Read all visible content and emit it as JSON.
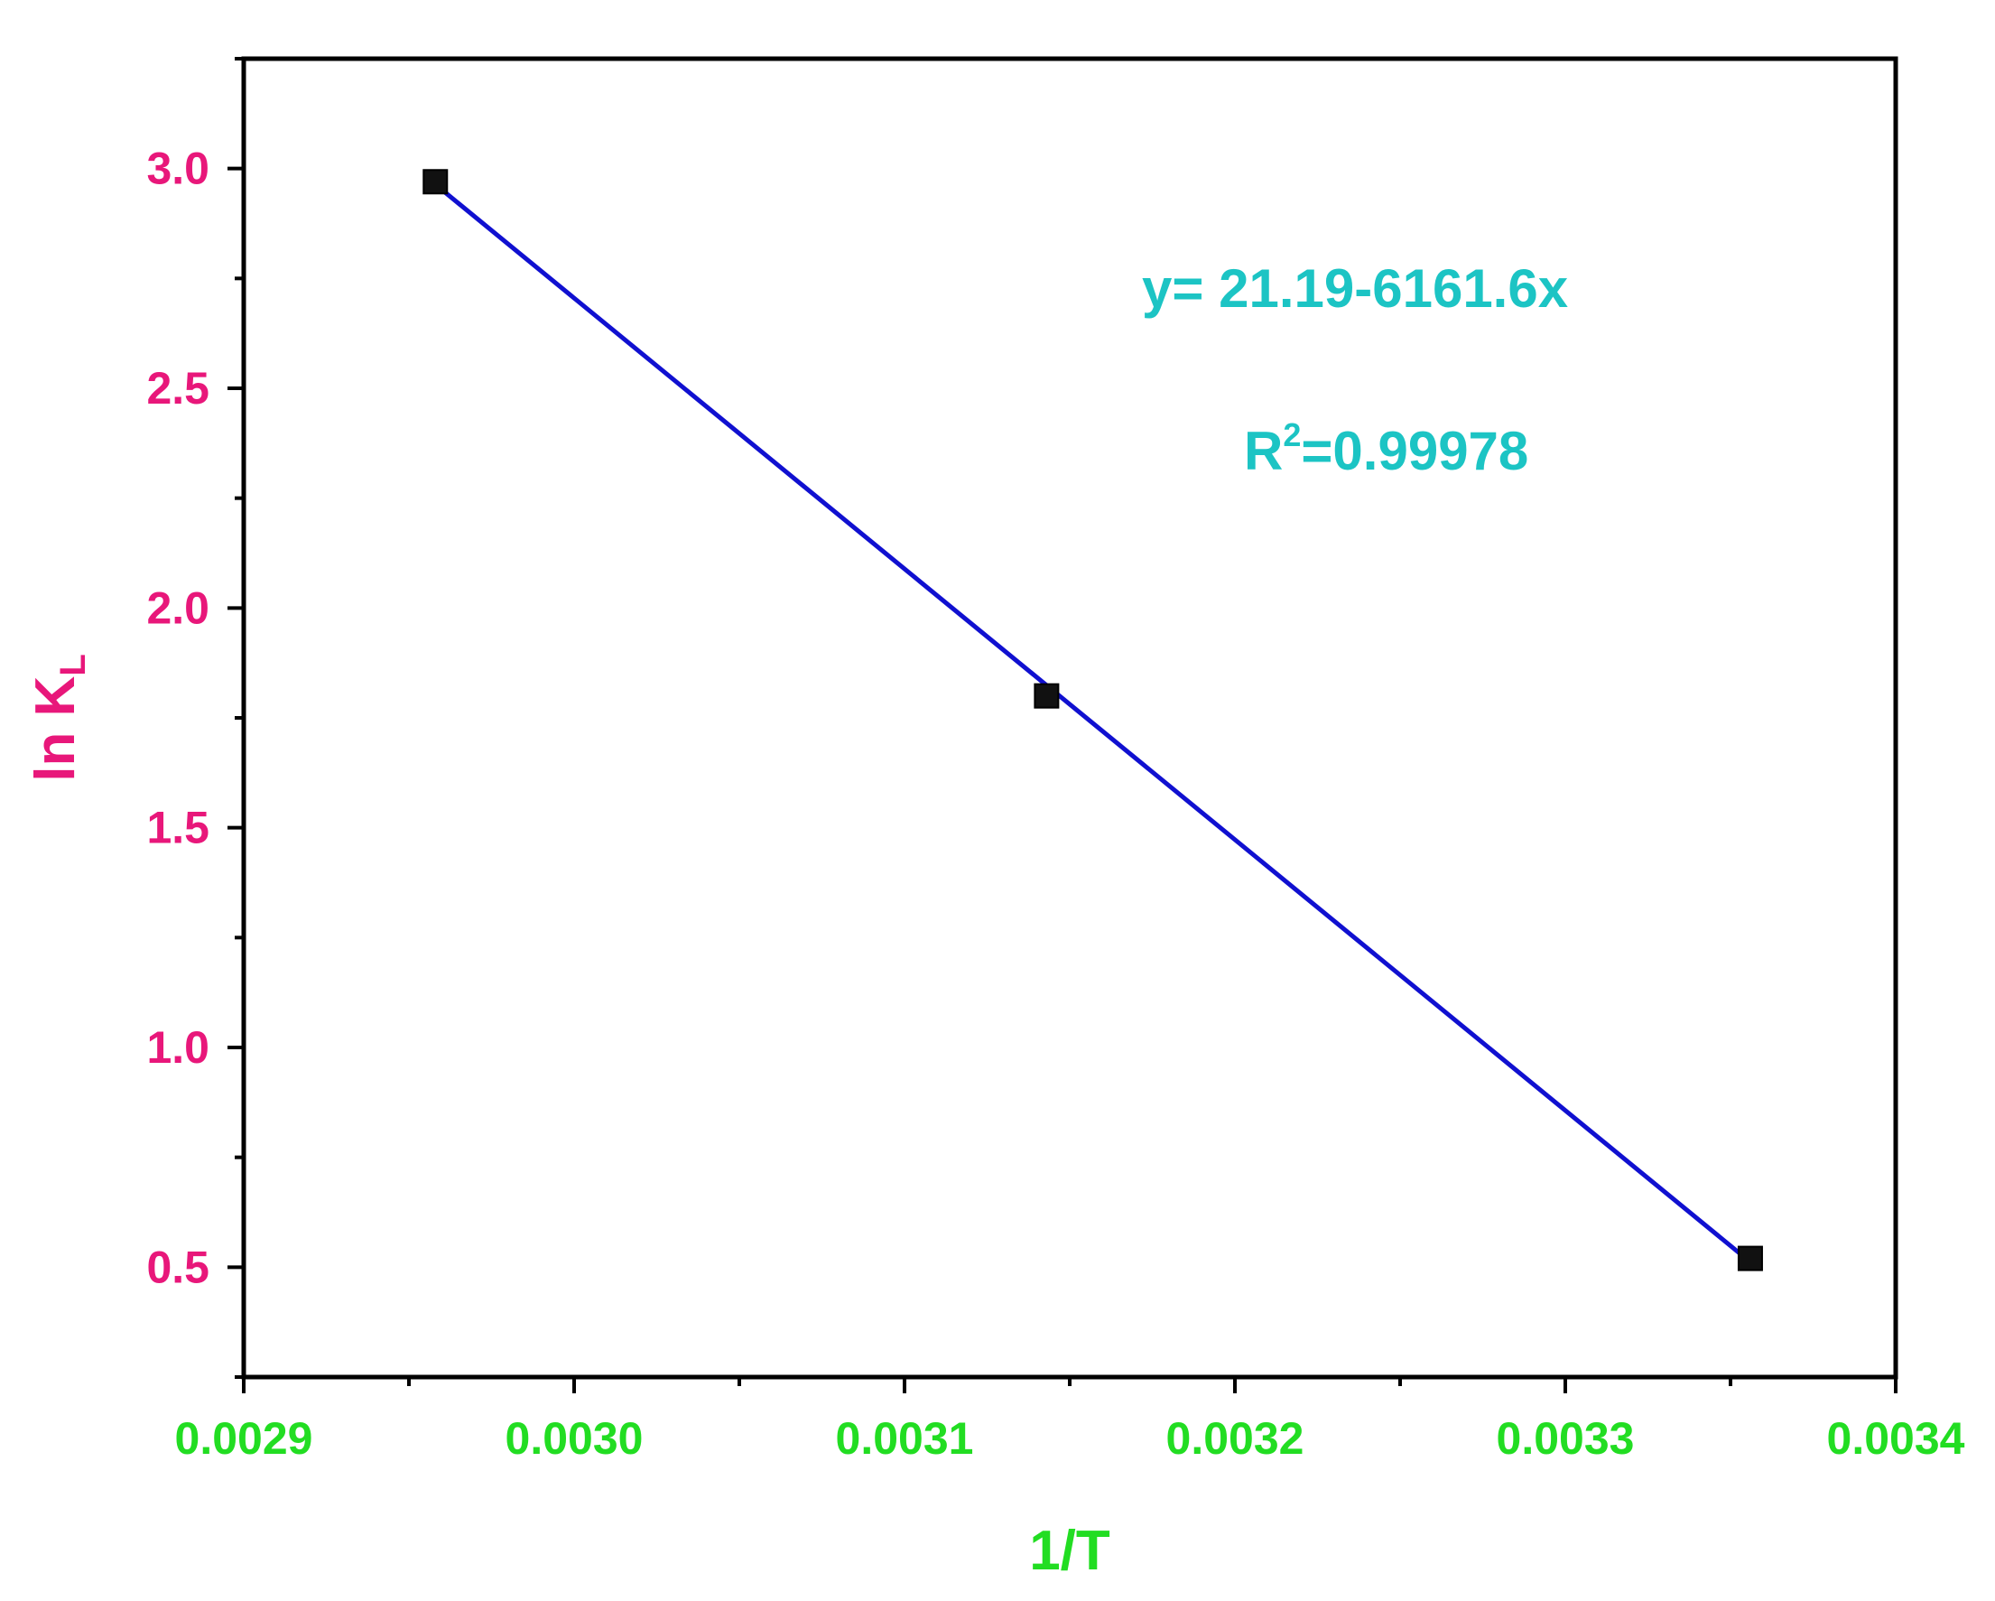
{
  "chart_data": {
    "type": "scatter",
    "x": [
      0.002958,
      0.003143,
      0.003356
    ],
    "y": [
      2.97,
      1.8,
      0.52
    ],
    "xlabel": "1/T",
    "ylabel": {
      "main": "ln K",
      "subscript": "L"
    },
    "xlim": [
      0.0029,
      0.0034
    ],
    "ylim": [
      0.25,
      3.25
    ],
    "xticks": [
      0.0029,
      0.003,
      0.0031,
      0.0032,
      0.0033,
      0.0034
    ],
    "xtick_labels": [
      "0.0029",
      "0.0030",
      "0.0031",
      "0.0032",
      "0.0033",
      "0.0034"
    ],
    "yticks": [
      0.5,
      1.0,
      1.5,
      2.0,
      2.5,
      3.0
    ],
    "ytick_labels": [
      "0.5",
      "1.0",
      "1.5",
      "2.0",
      "2.5",
      "3.0"
    ],
    "fit": {
      "intercept": 21.19,
      "slope": -6161.6,
      "x_range": [
        0.002958,
        0.003356
      ]
    },
    "annotations": {
      "equation": "y= 21.19-6161.6x",
      "r2_prefix": "R",
      "r2_sup": "2",
      "r2_value": "=0.99978"
    },
    "grid": false,
    "colors": {
      "points": "#111111",
      "fit_line": "#1010d0",
      "y_axis_text": "#e8177a",
      "x_axis_text": "#22dd22",
      "annotation": "#1cc4c4",
      "axes": "#000000"
    }
  }
}
